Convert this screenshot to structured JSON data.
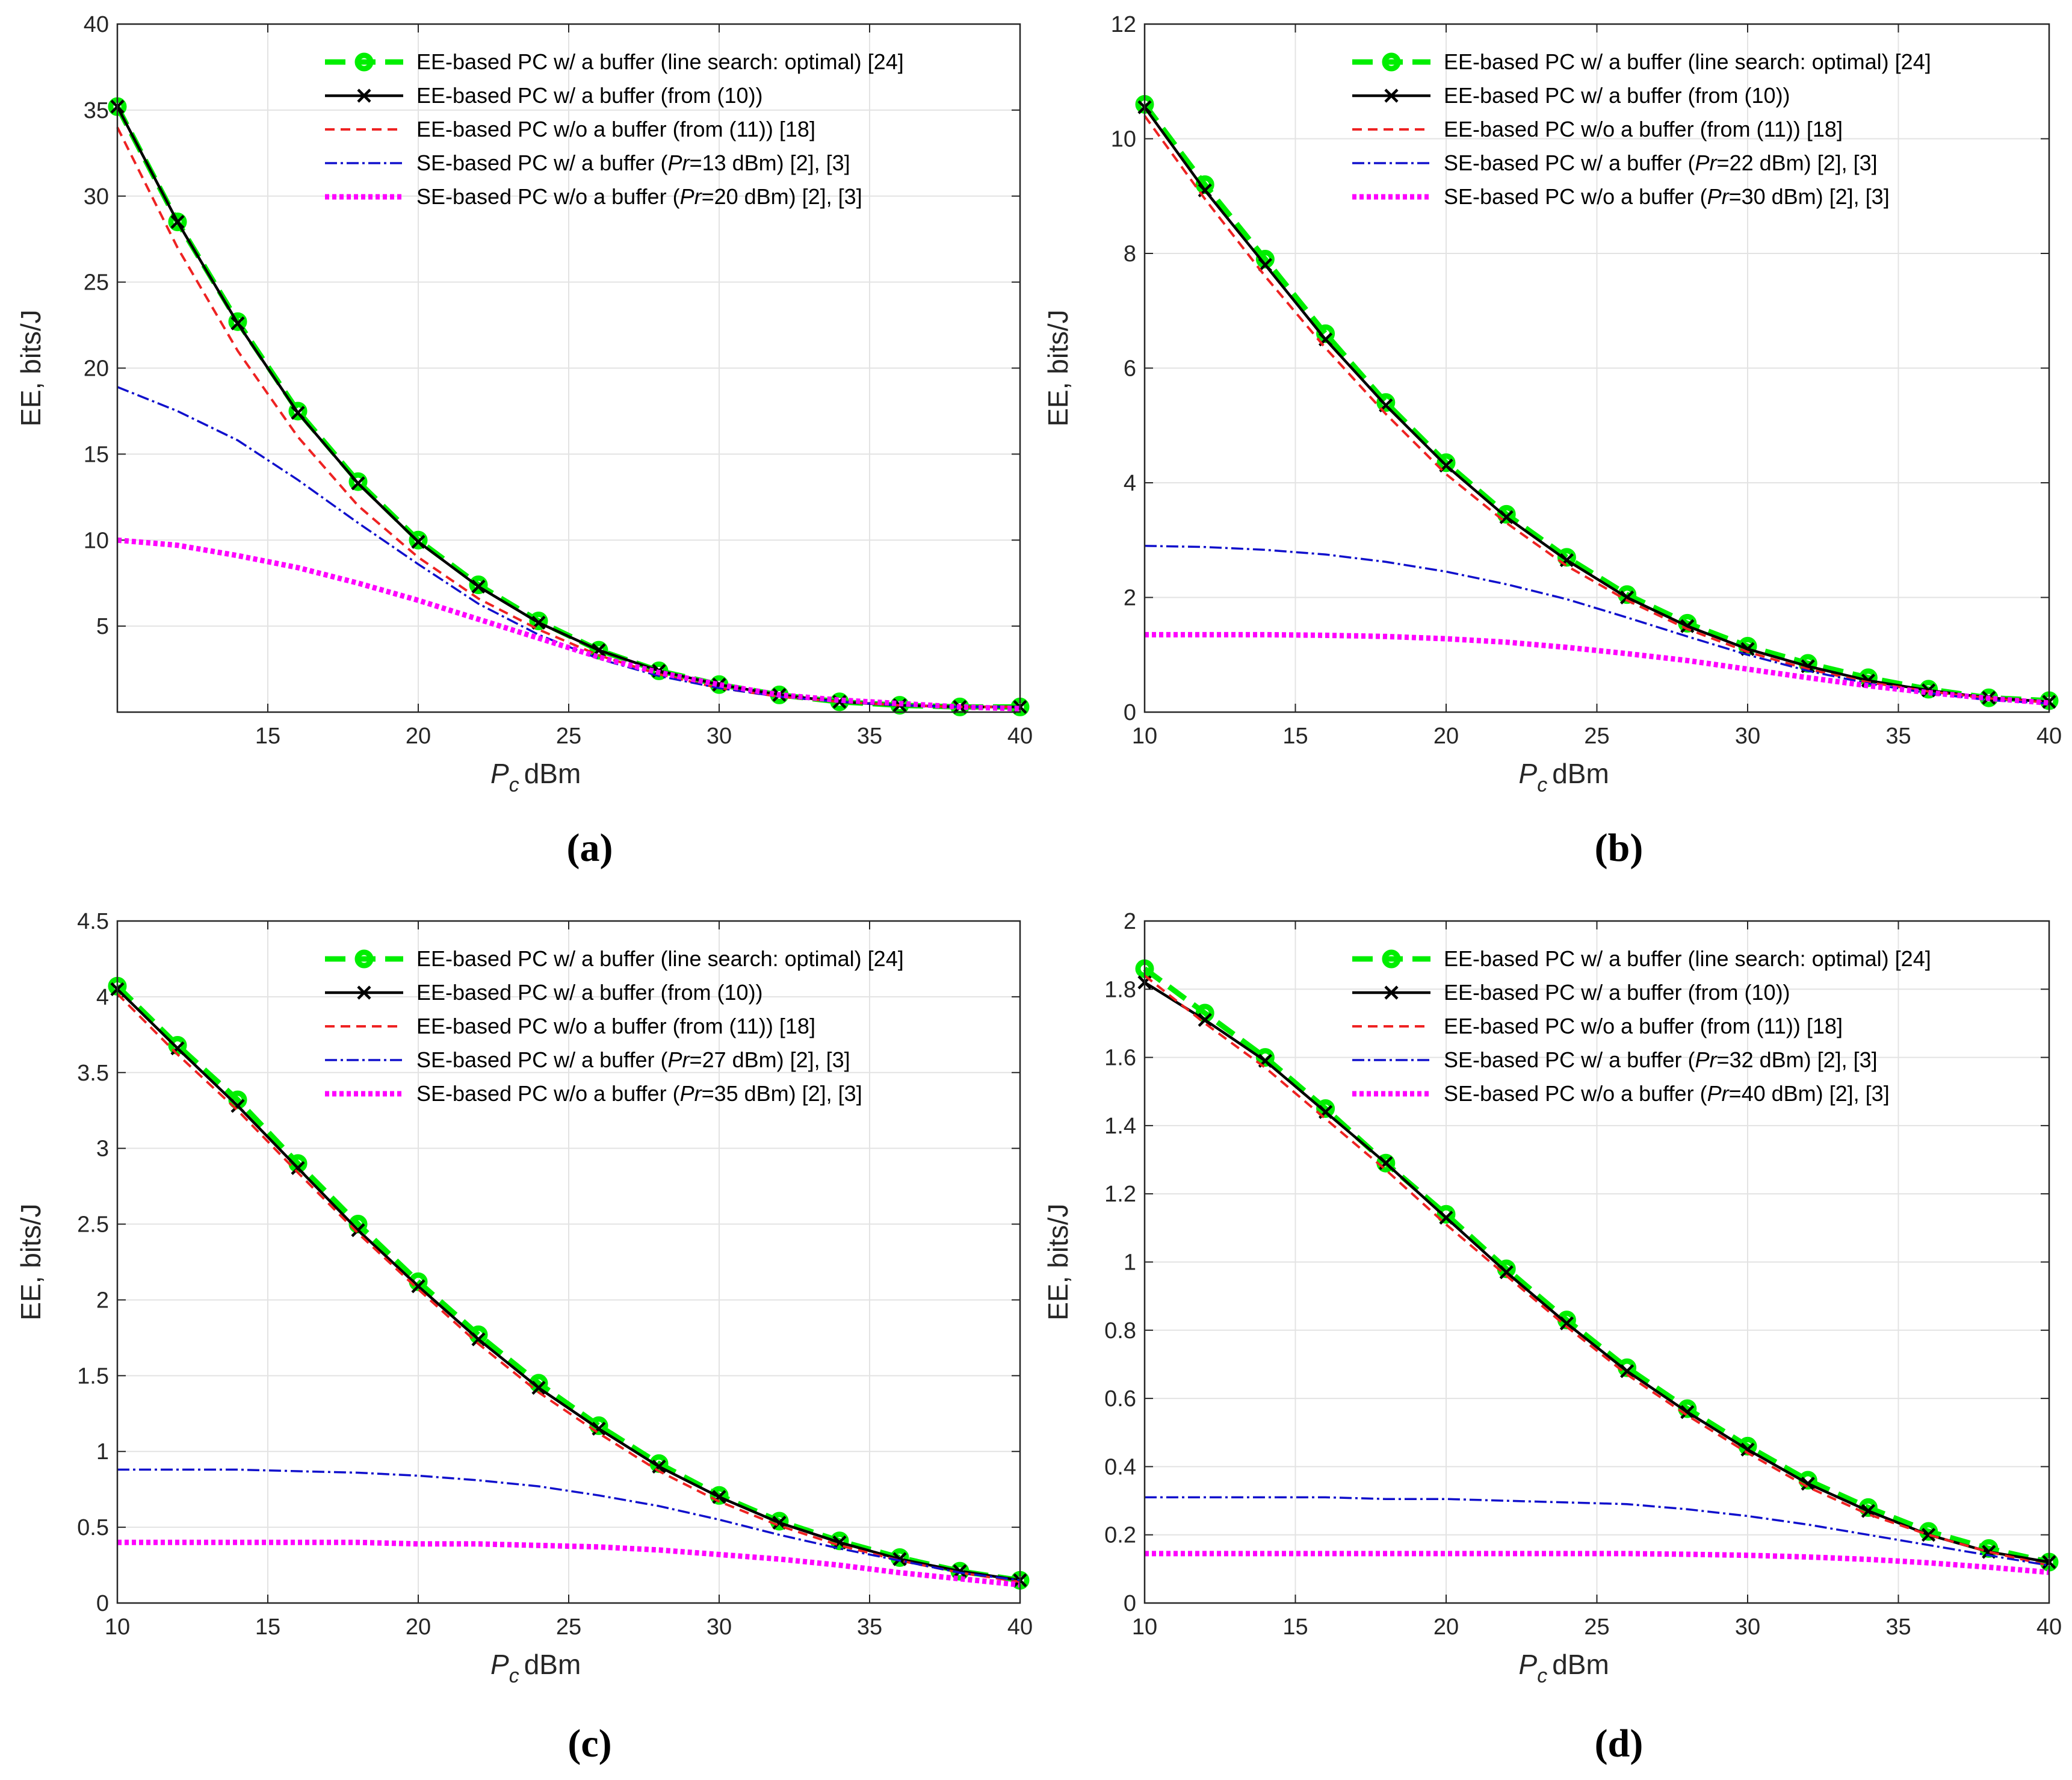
{
  "figure": {
    "captions": [
      "(a)",
      "(b)",
      "(c)",
      "(d)"
    ],
    "ylabel": "EE, bits/J",
    "xlabel": {
      "symbol": "P",
      "subscript": "c",
      "unit": "dBm"
    }
  },
  "colors": {
    "ee_linesearch": "#00ee00",
    "ee_from10": "#000000",
    "ee_nobuffer": "#ee2222",
    "se_buffer": "#1010cc",
    "se_nobuffer": "#ff00ff",
    "grid": "#e3e3e3",
    "axis": "#262626"
  },
  "chart_data": [
    {
      "type": "line",
      "caption": "(a)",
      "xlim": [
        10,
        40
      ],
      "ylim": [
        0,
        40
      ],
      "xticks": [
        15,
        20,
        25,
        30,
        35,
        40
      ],
      "yticks": [
        5,
        10,
        15,
        20,
        25,
        30,
        35,
        40
      ],
      "xlabel": "Pc dBm",
      "ylabel": "EE, bits/J",
      "legend_position": "top-right",
      "series": [
        {
          "key": "ee_linesearch",
          "name": "EE-based PC w/ a buffer (line search: optimal) [24]",
          "x": [
            10,
            12,
            14,
            16,
            18,
            20,
            22,
            24,
            26,
            28,
            30,
            32,
            34,
            36,
            38,
            40
          ],
          "values": [
            35.2,
            28.5,
            22.7,
            17.5,
            13.4,
            10.0,
            7.4,
            5.3,
            3.6,
            2.4,
            1.6,
            1.0,
            0.6,
            0.4,
            0.3,
            0.3
          ]
        },
        {
          "key": "ee_from10",
          "name": "EE-based PC w/ a buffer (from (10))",
          "x": [
            10,
            12,
            14,
            16,
            18,
            20,
            22,
            24,
            26,
            28,
            30,
            32,
            34,
            36,
            38,
            40
          ],
          "values": [
            35.2,
            28.5,
            22.6,
            17.4,
            13.3,
            9.9,
            7.3,
            5.2,
            3.6,
            2.4,
            1.6,
            1.0,
            0.6,
            0.4,
            0.3,
            0.3
          ]
        },
        {
          "key": "ee_nobuffer",
          "name": "EE-based PC w/o a buffer (from (11)) [18]",
          "x": [
            10,
            12,
            14,
            16,
            18,
            20,
            22,
            24,
            26,
            28,
            30,
            32,
            34,
            36,
            38,
            40
          ],
          "values": [
            34.0,
            27.0,
            21.0,
            16.0,
            12.0,
            9.0,
            6.6,
            4.8,
            3.3,
            2.2,
            1.4,
            0.9,
            0.6,
            0.4,
            0.3,
            0.3
          ]
        },
        {
          "key": "se_buffer",
          "name": "SE-based PC w/ a buffer (Pr=13 dBm) [2], [3]",
          "pr_prefix": "SE-based PC w/ a buffer (",
          "pr_label": "Pr",
          "pr_suffix": "=13 dBm) [2], [3]",
          "x": [
            10,
            12,
            14,
            16,
            18,
            20,
            22,
            24,
            26,
            28,
            30,
            32,
            34,
            36,
            38,
            40
          ],
          "values": [
            18.9,
            17.5,
            15.8,
            13.5,
            11.0,
            8.6,
            6.3,
            4.5,
            3.1,
            2.1,
            1.4,
            0.9,
            0.6,
            0.4,
            0.3,
            0.3
          ]
        },
        {
          "key": "se_nobuffer",
          "name": "SE-based PC w/o a buffer (Pr=20 dBm) [2], [3]",
          "pr_prefix": "SE-based PC w/o a buffer (",
          "pr_label": "Pr",
          "pr_suffix": "=20 dBm) [2], [3]",
          "x": [
            10,
            12,
            14,
            16,
            18,
            20,
            22,
            24,
            26,
            28,
            30,
            32,
            34,
            36,
            38,
            40
          ],
          "values": [
            10.0,
            9.7,
            9.1,
            8.4,
            7.5,
            6.5,
            5.4,
            4.3,
            3.2,
            2.3,
            1.6,
            1.0,
            0.7,
            0.5,
            0.3,
            0.2
          ]
        }
      ]
    },
    {
      "type": "line",
      "caption": "(b)",
      "xlim": [
        10,
        40
      ],
      "ylim": [
        0,
        12
      ],
      "xticks": [
        10,
        15,
        20,
        25,
        30,
        35,
        40
      ],
      "yticks": [
        0,
        2,
        4,
        6,
        8,
        10,
        12
      ],
      "xlabel": "Pc dBm",
      "ylabel": "EE, bits/J",
      "legend_position": "top-right",
      "series": [
        {
          "key": "ee_linesearch",
          "name": "EE-based PC w/ a buffer (line search: optimal) [24]",
          "x": [
            10,
            12,
            14,
            16,
            18,
            20,
            22,
            24,
            26,
            28,
            30,
            32,
            34,
            36,
            38,
            40
          ],
          "values": [
            10.6,
            9.2,
            7.9,
            6.6,
            5.4,
            4.35,
            3.45,
            2.7,
            2.05,
            1.55,
            1.15,
            0.85,
            0.6,
            0.4,
            0.25,
            0.2
          ]
        },
        {
          "key": "ee_from10",
          "name": "EE-based PC w/ a buffer (from (10))",
          "x": [
            10,
            12,
            14,
            16,
            18,
            20,
            22,
            24,
            26,
            28,
            30,
            32,
            34,
            36,
            38,
            40
          ],
          "values": [
            10.55,
            9.1,
            7.8,
            6.5,
            5.35,
            4.3,
            3.4,
            2.65,
            2.0,
            1.5,
            1.1,
            0.8,
            0.55,
            0.38,
            0.25,
            0.18
          ]
        },
        {
          "key": "ee_nobuffer",
          "name": "EE-based PC w/o a buffer (from (11)) [18]",
          "x": [
            10,
            12,
            14,
            16,
            18,
            20,
            22,
            24,
            26,
            28,
            30,
            32,
            34,
            36,
            38,
            40
          ],
          "values": [
            10.4,
            8.95,
            7.6,
            6.35,
            5.2,
            4.15,
            3.3,
            2.55,
            1.95,
            1.45,
            1.05,
            0.75,
            0.52,
            0.36,
            0.24,
            0.17
          ]
        },
        {
          "key": "se_buffer",
          "name": "SE-based PC w/ a buffer (Pr=22 dBm) [2], [3]",
          "pr_prefix": "SE-based PC w/ a buffer (",
          "pr_label": "Pr",
          "pr_suffix": "=22 dBm) [2], [3]",
          "x": [
            10,
            12,
            14,
            16,
            18,
            20,
            22,
            24,
            26,
            28,
            30,
            32,
            34,
            36,
            38,
            40
          ],
          "values": [
            2.9,
            2.88,
            2.83,
            2.75,
            2.62,
            2.45,
            2.23,
            1.97,
            1.65,
            1.32,
            1.0,
            0.72,
            0.5,
            0.33,
            0.21,
            0.15
          ]
        },
        {
          "key": "se_nobuffer",
          "name": "SE-based PC w/o a buffer (Pr=30 dBm) [2], [3]",
          "pr_prefix": "SE-based PC w/o a buffer (",
          "pr_label": "Pr",
          "pr_suffix": "=30 dBm) [2], [3]",
          "x": [
            10,
            12,
            14,
            16,
            18,
            20,
            22,
            24,
            26,
            28,
            30,
            32,
            34,
            36,
            38,
            40
          ],
          "values": [
            1.35,
            1.35,
            1.35,
            1.34,
            1.32,
            1.28,
            1.22,
            1.13,
            1.02,
            0.9,
            0.75,
            0.6,
            0.46,
            0.34,
            0.24,
            0.16
          ]
        }
      ]
    },
    {
      "type": "line",
      "caption": "(c)",
      "xlim": [
        10,
        40
      ],
      "ylim": [
        0,
        4.5
      ],
      "xticks": [
        10,
        15,
        20,
        25,
        30,
        35,
        40
      ],
      "yticks": [
        0,
        0.5,
        1,
        1.5,
        2,
        2.5,
        3,
        3.5,
        4,
        4.5
      ],
      "xlabel": "Pc dBm",
      "ylabel": "EE, bits/J",
      "legend_position": "top-right",
      "series": [
        {
          "key": "ee_linesearch",
          "name": "EE-based PC w/ a buffer (line search: optimal) [24]",
          "x": [
            10,
            12,
            14,
            16,
            18,
            20,
            22,
            24,
            26,
            28,
            30,
            32,
            34,
            36,
            38,
            40
          ],
          "values": [
            4.07,
            3.68,
            3.32,
            2.9,
            2.5,
            2.12,
            1.77,
            1.45,
            1.17,
            0.92,
            0.71,
            0.54,
            0.41,
            0.3,
            0.21,
            0.15
          ]
        },
        {
          "key": "ee_from10",
          "name": "EE-based PC w/ a buffer (from (10))",
          "x": [
            10,
            12,
            14,
            16,
            18,
            20,
            22,
            24,
            26,
            28,
            30,
            32,
            34,
            36,
            38,
            40
          ],
          "values": [
            4.05,
            3.66,
            3.28,
            2.87,
            2.46,
            2.09,
            1.74,
            1.42,
            1.15,
            0.9,
            0.7,
            0.53,
            0.4,
            0.29,
            0.21,
            0.15
          ]
        },
        {
          "key": "ee_nobuffer",
          "name": "EE-based PC w/o a buffer (from (11)) [18]",
          "x": [
            10,
            12,
            14,
            16,
            18,
            20,
            22,
            24,
            26,
            28,
            30,
            32,
            34,
            36,
            38,
            40
          ],
          "values": [
            4.02,
            3.62,
            3.25,
            2.84,
            2.44,
            2.07,
            1.71,
            1.39,
            1.12,
            0.87,
            0.67,
            0.51,
            0.38,
            0.28,
            0.2,
            0.14
          ]
        },
        {
          "key": "se_buffer",
          "name": "SE-based PC w/ a buffer (Pr=27 dBm) [2], [3]",
          "pr_prefix": "SE-based PC w/ a buffer (",
          "pr_label": "Pr",
          "pr_suffix": "=27 dBm) [2], [3]",
          "x": [
            10,
            12,
            14,
            16,
            18,
            20,
            22,
            24,
            26,
            28,
            30,
            32,
            34,
            36,
            38,
            40
          ],
          "values": [
            0.88,
            0.88,
            0.88,
            0.87,
            0.86,
            0.84,
            0.81,
            0.77,
            0.71,
            0.64,
            0.55,
            0.45,
            0.36,
            0.28,
            0.2,
            0.15
          ]
        },
        {
          "key": "se_nobuffer",
          "name": "SE-based PC w/o a buffer (Pr=35 dBm) [2], [3]",
          "pr_prefix": "SE-based PC w/o a buffer (",
          "pr_label": "Pr",
          "pr_suffix": "=35 dBm) [2], [3]",
          "x": [
            10,
            12,
            14,
            16,
            18,
            20,
            22,
            24,
            26,
            28,
            30,
            32,
            34,
            36,
            38,
            40
          ],
          "values": [
            0.4,
            0.4,
            0.4,
            0.4,
            0.4,
            0.39,
            0.39,
            0.38,
            0.37,
            0.35,
            0.32,
            0.29,
            0.25,
            0.2,
            0.16,
            0.12
          ]
        }
      ]
    },
    {
      "type": "line",
      "caption": "(d)",
      "xlim": [
        10,
        40
      ],
      "ylim": [
        0,
        2
      ],
      "xticks": [
        10,
        15,
        20,
        25,
        30,
        35,
        40
      ],
      "yticks": [
        0,
        0.2,
        0.4,
        0.6,
        0.8,
        1,
        1.2,
        1.4,
        1.6,
        1.8,
        2
      ],
      "xlabel": "Pc dBm",
      "ylabel": "EE, bits/J",
      "legend_position": "top-right",
      "series": [
        {
          "key": "ee_linesearch",
          "name": "EE-based PC w/ a buffer (line search: optimal) [24]",
          "x": [
            10,
            12,
            14,
            16,
            18,
            20,
            22,
            24,
            26,
            28,
            30,
            32,
            34,
            36,
            38,
            40
          ],
          "values": [
            1.86,
            1.73,
            1.6,
            1.45,
            1.29,
            1.14,
            0.98,
            0.83,
            0.69,
            0.57,
            0.46,
            0.36,
            0.28,
            0.21,
            0.16,
            0.12
          ]
        },
        {
          "key": "ee_from10",
          "name": "EE-based PC w/ a buffer (from (10))",
          "x": [
            10,
            12,
            14,
            16,
            18,
            20,
            22,
            24,
            26,
            28,
            30,
            32,
            34,
            36,
            38,
            40
          ],
          "values": [
            1.82,
            1.71,
            1.59,
            1.44,
            1.29,
            1.13,
            0.97,
            0.82,
            0.68,
            0.56,
            0.45,
            0.35,
            0.27,
            0.2,
            0.15,
            0.12
          ]
        },
        {
          "key": "ee_nobuffer",
          "name": "EE-based PC w/o a buffer (from (11)) [18]",
          "x": [
            10,
            12,
            14,
            16,
            18,
            20,
            22,
            24,
            26,
            28,
            30,
            32,
            34,
            36,
            38,
            40
          ],
          "values": [
            1.84,
            1.7,
            1.57,
            1.42,
            1.27,
            1.11,
            0.96,
            0.81,
            0.67,
            0.55,
            0.44,
            0.34,
            0.26,
            0.2,
            0.15,
            0.11
          ]
        },
        {
          "key": "se_buffer",
          "name": "SE-based PC w/ a buffer (Pr=32 dBm) [2], [3]",
          "pr_prefix": "SE-based PC w/ a buffer (",
          "pr_label": "Pr",
          "pr_suffix": "=32 dBm) [2], [3]",
          "x": [
            10,
            12,
            14,
            16,
            18,
            20,
            22,
            24,
            26,
            28,
            30,
            32,
            34,
            36,
            38,
            40
          ],
          "values": [
            0.31,
            0.31,
            0.31,
            0.31,
            0.305,
            0.305,
            0.3,
            0.295,
            0.29,
            0.275,
            0.255,
            0.23,
            0.2,
            0.17,
            0.14,
            0.11
          ]
        },
        {
          "key": "se_nobuffer",
          "name": "SE-based PC w/o a buffer (Pr=40 dBm) [2], [3]",
          "pr_prefix": "SE-based PC w/o a buffer (",
          "pr_label": "Pr",
          "pr_suffix": "=40 dBm) [2], [3]",
          "x": [
            10,
            12,
            14,
            16,
            18,
            20,
            22,
            24,
            26,
            28,
            30,
            32,
            34,
            36,
            38,
            40
          ],
          "values": [
            0.145,
            0.145,
            0.145,
            0.145,
            0.145,
            0.145,
            0.145,
            0.145,
            0.145,
            0.143,
            0.14,
            0.135,
            0.128,
            0.118,
            0.105,
            0.09
          ]
        }
      ]
    }
  ]
}
